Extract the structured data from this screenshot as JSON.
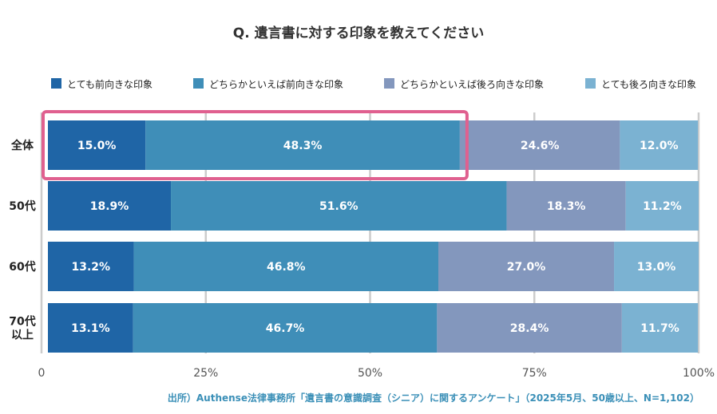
{
  "chart_data": {
    "type": "bar",
    "orientation": "horizontal",
    "stacked": true,
    "title": "Q. 遺言書に対する印象を教えてください",
    "categories": [
      [
        "全体"
      ],
      [
        "50代"
      ],
      [
        "60代"
      ],
      [
        "70代",
        "以上"
      ]
    ],
    "series": [
      {
        "name": "とても前向きな印象",
        "color": "#1f65a6",
        "values": [
          15.0,
          18.9,
          13.2,
          13.1
        ]
      },
      {
        "name": "どちらかといえば前向きな印象",
        "color": "#3f8eb8",
        "values": [
          48.3,
          51.6,
          46.8,
          46.7
        ]
      },
      {
        "name": "どちらかといえば後ろ向きな印象",
        "color": "#8397bd",
        "values": [
          24.6,
          18.3,
          27.0,
          28.4
        ]
      },
      {
        "name": "とても後ろ向きな印象",
        "color": "#7bb2d2",
        "values": [
          12.0,
          11.2,
          13.0,
          11.7
        ]
      }
    ],
    "value_labels": [
      [
        "15.0%",
        "48.3%",
        "24.6%",
        "12.0%"
      ],
      [
        "18.9%",
        "51.6%",
        "18.3%",
        "11.2%"
      ],
      [
        "13.2%",
        "46.8%",
        "27.0%",
        "13.0%"
      ],
      [
        "13.1%",
        "46.7%",
        "28.4%",
        "11.7%"
      ]
    ],
    "xlim": [
      0,
      100
    ],
    "xticks": [
      0,
      25,
      50,
      75,
      100
    ],
    "xtick_labels": [
      "0",
      "25%",
      "50%",
      "75%",
      "100%"
    ],
    "grid": true,
    "legend_position": "top",
    "highlight": {
      "category_index": 0,
      "series_indices": [
        0,
        1
      ],
      "color": "#e0608f"
    },
    "source": "出所）Authense法律事務所「遺言書の意識調査（シニア）に関するアンケート」（2025年5月、50歳以上、N=1,102）"
  }
}
